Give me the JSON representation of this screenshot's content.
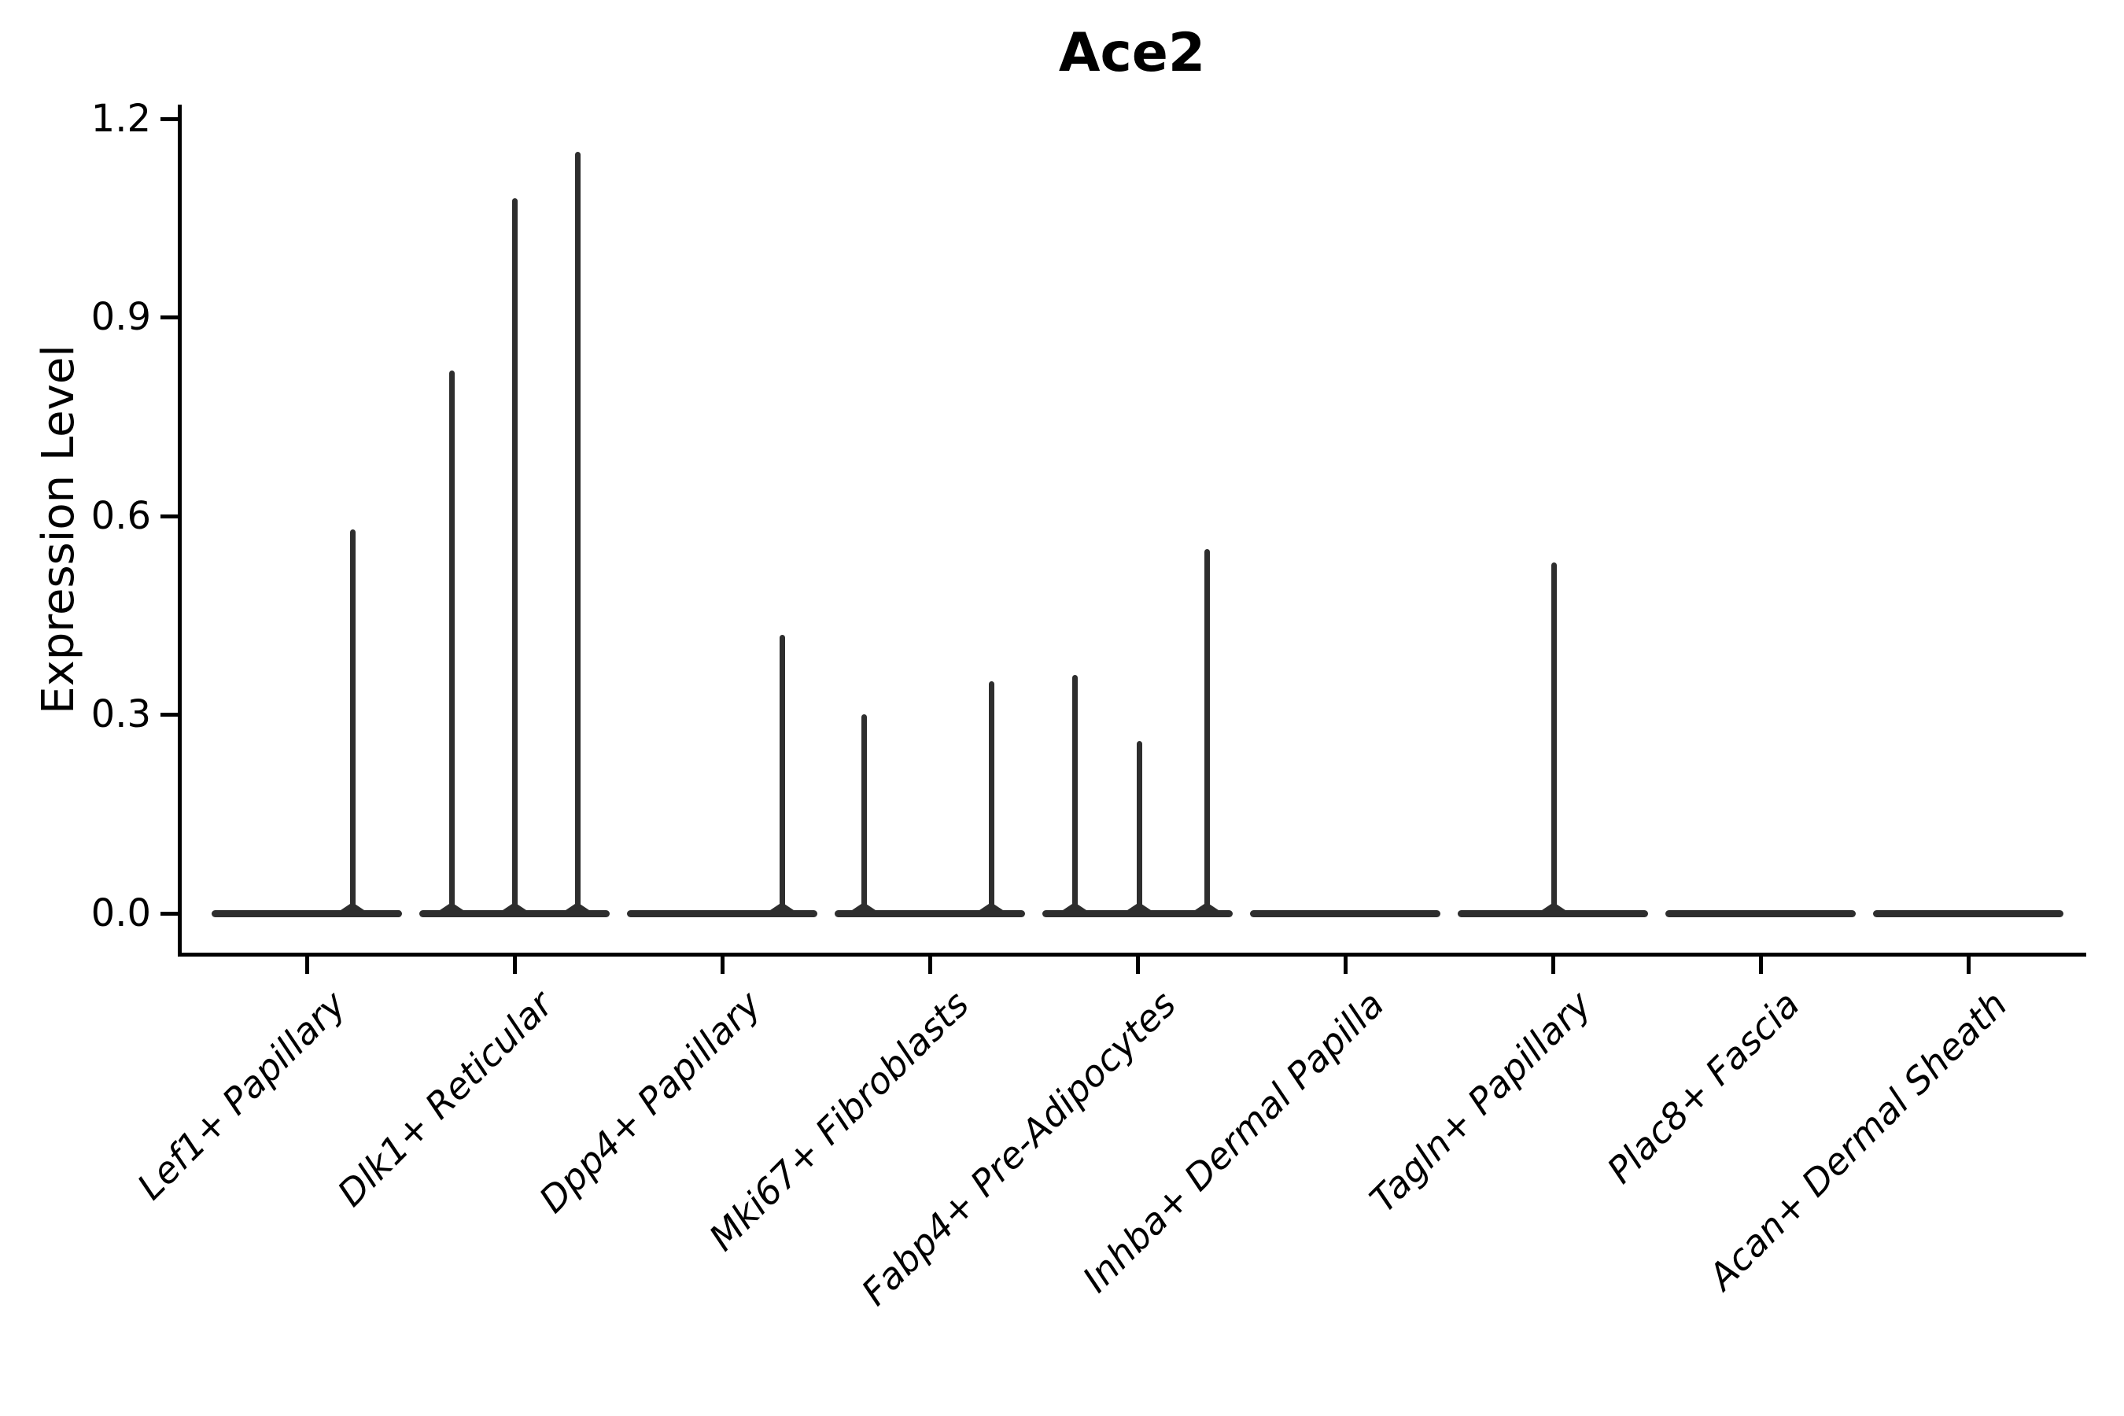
{
  "figure": {
    "title": "Ace2",
    "background_color": "#ffffff",
    "axis_color": "#000000",
    "violin_color": "#2e2e2e"
  },
  "chart_data": {
    "type": "violin",
    "title": "Ace2",
    "xlabel": "",
    "ylabel": "Expression Level",
    "ylim": [
      -0.06,
      1.22
    ],
    "yticks": [
      0.0,
      0.3,
      0.6,
      0.9,
      1.2
    ],
    "ytick_labels": [
      "0.0",
      "0.3",
      "0.6",
      "0.9",
      "1.2"
    ],
    "grid": false,
    "legend": null,
    "categories": [
      "Lef1+ Papillary",
      "Dlk1+ Reticular",
      "Dpp4+ Papillary",
      "Mki67+ Fibroblasts",
      "Fabp4+ Pre-Adipocytes",
      "Inhba+ Dermal Papilla",
      "Tagln+ Papillary",
      "Plac8+ Fascia",
      "Acan+ Dermal Sheath"
    ],
    "violins": [
      {
        "category": "Lef1+ Papillary",
        "zero_body": true,
        "peaks": [
          {
            "dx": 58,
            "value": 0.58
          }
        ]
      },
      {
        "category": "Dlk1+ Reticular",
        "zero_body": true,
        "peaks": [
          {
            "dx": -80,
            "value": 0.82
          },
          {
            "dx": 0,
            "value": 1.08
          },
          {
            "dx": 80,
            "value": 1.15
          }
        ]
      },
      {
        "category": "Dpp4+ Papillary",
        "zero_body": true,
        "peaks": [
          {
            "dx": 76,
            "value": 0.42
          }
        ]
      },
      {
        "category": "Mki67+ Fibroblasts",
        "zero_body": true,
        "peaks": [
          {
            "dx": -84,
            "value": 0.3
          },
          {
            "dx": 78,
            "value": 0.35
          }
        ]
      },
      {
        "category": "Fabp4+ Pre-Adipocytes",
        "zero_body": true,
        "peaks": [
          {
            "dx": -80,
            "value": 0.36
          },
          {
            "dx": 2,
            "value": 0.26
          },
          {
            "dx": 88,
            "value": 0.55
          }
        ]
      },
      {
        "category": "Inhba+ Dermal Papilla",
        "zero_body": true,
        "peaks": []
      },
      {
        "category": "Tagln+ Papillary",
        "zero_body": true,
        "peaks": [
          {
            "dx": 1,
            "value": 0.53
          }
        ]
      },
      {
        "category": "Plac8+ Fascia",
        "zero_body": true,
        "peaks": []
      },
      {
        "category": "Acan+ Dermal Sheath",
        "zero_body": true,
        "peaks": []
      }
    ]
  }
}
